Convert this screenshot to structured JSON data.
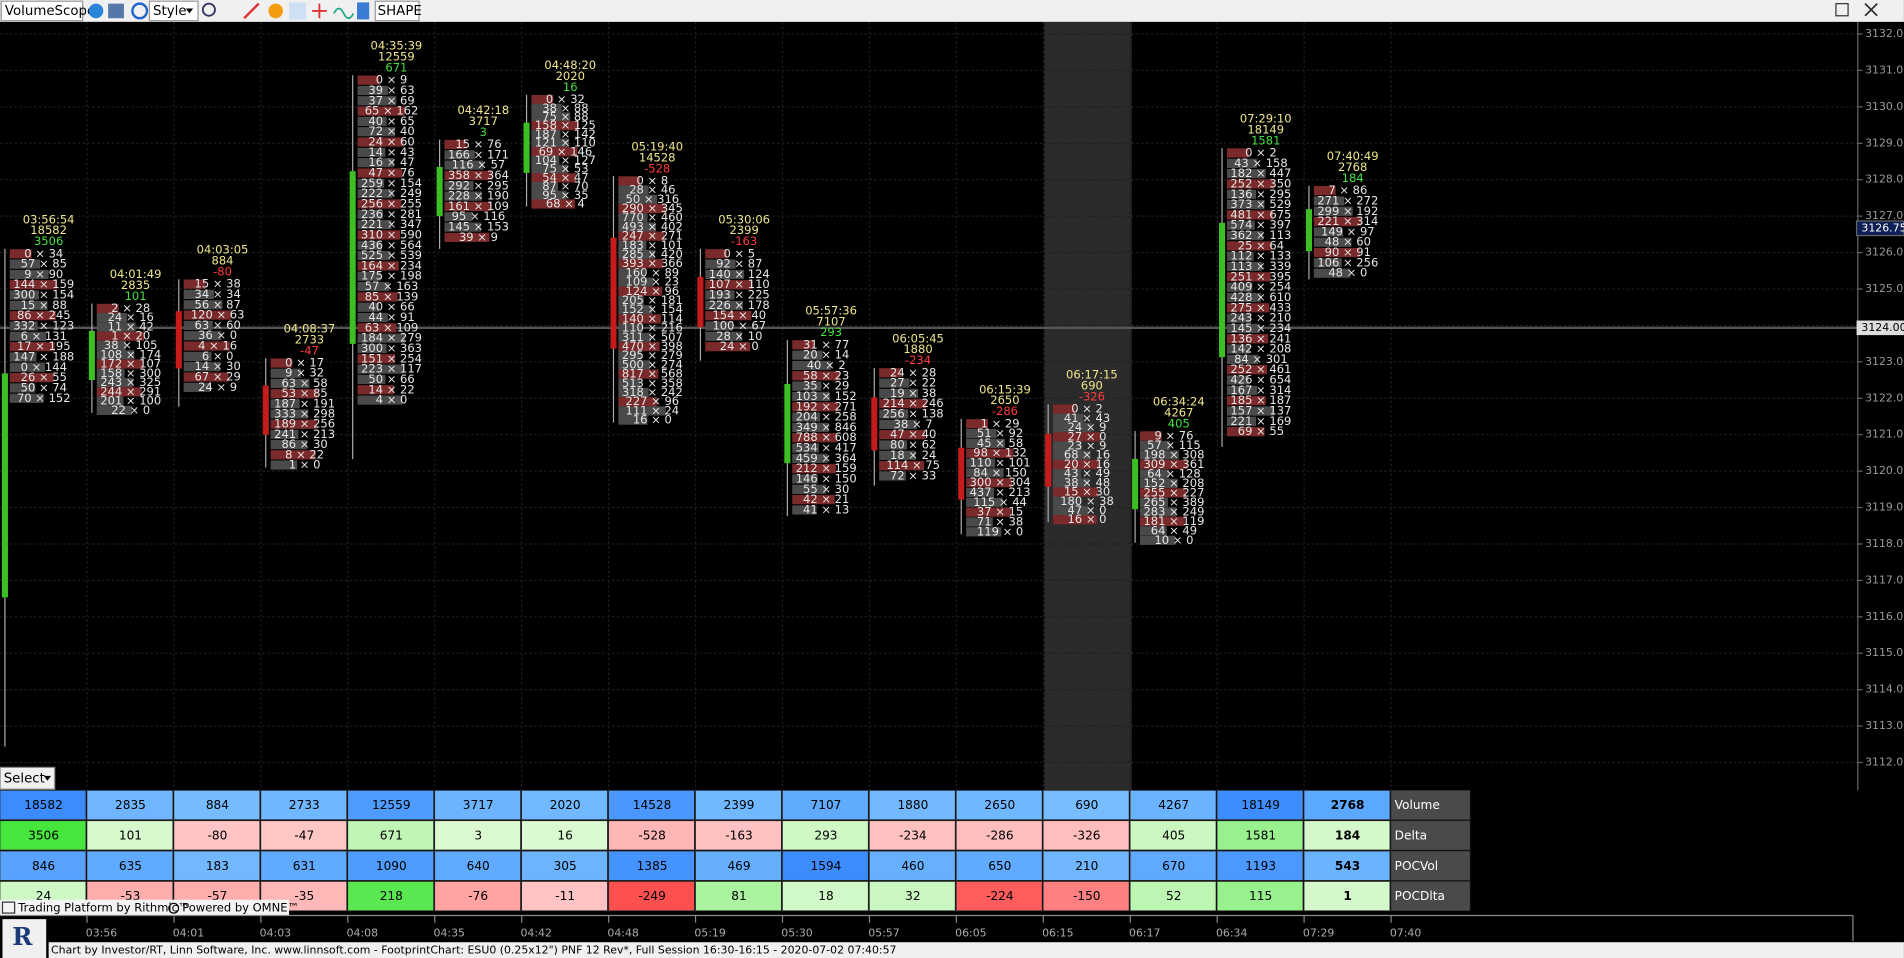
{
  "toolbar": {
    "app": "VolumeScope",
    "style": "Style",
    "shape": "SHAPE"
  },
  "price_axis": {
    "labels": [
      "3132.00",
      "3131.00",
      "3130.00",
      "3129.00",
      "3128.00",
      "3127.00",
      "3126.00",
      "3125.00",
      "3124.00",
      "3123.00",
      "3122.00",
      "3121.00",
      "3120.00",
      "3119.00",
      "3118.00",
      "3117.00",
      "3116.00",
      "3115.00",
      "3114.00",
      "3113.00",
      "3112.00"
    ],
    "last_price": "3126.75",
    "marker": "3124.00"
  },
  "bars": [
    {
      "time": "03:56:54",
      "volume": 18582,
      "delta": 3506,
      "poc_vol": 846,
      "poc_delta": 24,
      "cells": [
        "0 × 34",
        "57 × 85",
        "9 × 90",
        "144 × 159",
        "300 × 154",
        "15 × 88",
        "86 × 245",
        "332 × 123",
        "6 × 131",
        "17 × 195",
        "147 × 188",
        "0 × 144",
        "26 × 55",
        "50 × 74",
        "70 × 152"
      ]
    },
    {
      "time": "04:01:49",
      "volume": 2835,
      "delta": 101,
      "poc_vol": 635,
      "poc_delta": -53,
      "cells": [
        "2 × 28",
        "24 × 16",
        "11 × 42",
        "1 × 20",
        "38 × 105",
        "108 × 174",
        "172 × 107",
        "158 × 300",
        "243 × 325",
        "244 × 291",
        "201 × 100",
        "22 × 0"
      ]
    },
    {
      "time": "04:03:05",
      "volume": 884,
      "delta": -80,
      "poc_vol": 183,
      "poc_delta": -57,
      "cells": [
        "15 × 38",
        "34 × 34",
        "56 × 87",
        "120 × 63",
        "63 × 60",
        "36 × 0",
        "4 × 16",
        "6 × 0",
        "14 × 30",
        "67 × 29",
        "24 × 9"
      ]
    },
    {
      "time": "04:08:37",
      "volume": 2733,
      "delta": -47,
      "poc_vol": 631,
      "poc_delta": -35,
      "cells": [
        "0 × 17",
        "9 × 32",
        "63 × 58",
        "53 × 85",
        "187 × 191",
        "333 × 298",
        "189 × 256",
        "241 × 213",
        "86 × 30",
        "8 × 22",
        "1 × 0"
      ]
    },
    {
      "time": "04:35:39",
      "volume": 12559,
      "delta": 671,
      "poc_vol": 1090,
      "poc_delta": 218,
      "cells": [
        "0 × 9",
        "39 × 63",
        "37 × 69",
        "65 × 162",
        "40 × 65",
        "72 × 40",
        "24 × 60",
        "14 × 43",
        "16 × 47",
        "47 × 76",
        "259 × 154",
        "222 × 249",
        "256 × 255",
        "236 × 281",
        "221 × 347",
        "310 × 590",
        "436 × 564",
        "525 × 539",
        "164 × 234",
        "175 × 198",
        "57 × 163",
        "85 × 139",
        "40 × 66",
        "44 × 91",
        "63 × 109",
        "184 × 279",
        "300 × 363",
        "151 × 254",
        "223 × 117",
        "50 × 66",
        "14 × 22",
        "4 × 0"
      ]
    },
    {
      "time": "04:42:18",
      "volume": 3717,
      "delta": 3,
      "poc_vol": 640,
      "poc_delta": -76,
      "cells": [
        "15 × 76",
        "166 × 171",
        "116 × 57",
        "358 × 364",
        "292 × 295",
        "228 × 190",
        "161 × 109",
        "95 × 116",
        "145 × 153",
        "39 × 9"
      ]
    },
    {
      "time": "04:48:20",
      "volume": 2020,
      "delta": 16,
      "poc_vol": 305,
      "poc_delta": -11,
      "cells": [
        "0 × 32",
        "38 × 88",
        "75 × 88",
        "158 × 125",
        "187 × 142",
        "121 × 110",
        "69 × 146",
        "104 × 127",
        "75 × 53",
        "54 × 47",
        "87 × 70",
        "95 × 35",
        "68 × 4"
      ]
    },
    {
      "time": "05:19:40",
      "volume": 14528,
      "delta": -528,
      "poc_vol": 1385,
      "poc_delta": -249,
      "cells": [
        "0 × 8",
        "28 × 46",
        "50 × 316",
        "290 × 345",
        "770 × 460",
        "493 × 402",
        "247 × 271",
        "183 × 101",
        "285 × 420",
        "393 × 366",
        "160 × 89",
        "109 × 23",
        "124 × 96",
        "205 × 181",
        "152 × 154",
        "140 × 114",
        "110 × 216",
        "311 × 507",
        "470 × 398",
        "295 × 279",
        "500 × 274",
        "817 × 568",
        "513 × 358",
        "318 × 242",
        "227 × 96",
        "111 × 24",
        "16 × 0"
      ]
    },
    {
      "time": "05:30:06",
      "volume": 2399,
      "delta": -163,
      "poc_vol": 469,
      "poc_delta": 81,
      "cells": [
        "0 × 5",
        "92 × 87",
        "140 × 124",
        "107 × 110",
        "193 × 225",
        "226 × 178",
        "154 × 40",
        "100 × 67",
        "28 × 10",
        "24 × 0"
      ]
    },
    {
      "time": "05:57:36",
      "volume": 7107,
      "delta": 293,
      "poc_vol": 1594,
      "poc_delta": 18,
      "cells": [
        "31 × 77",
        "20 × 14",
        "40 × 2",
        "58 × 23",
        "35 × 29",
        "103 × 152",
        "192 × 271",
        "204 × 258",
        "349 × 846",
        "788 × 608",
        "534 × 417",
        "459 × 364",
        "212 × 159",
        "146 × 150",
        "55 × 30",
        "42 × 21",
        "41 × 13"
      ]
    },
    {
      "time": "06:05:45",
      "volume": 1880,
      "delta": -234,
      "poc_vol": 460,
      "poc_delta": 32,
      "cells": [
        "24 × 28",
        "27 × 22",
        "19 × 38",
        "214 × 246",
        "256 × 138",
        "38 × 7",
        "47 × 40",
        "80 × 62",
        "18 × 24",
        "114 × 75",
        "72 × 33"
      ]
    },
    {
      "time": "06:15:39",
      "volume": 2650,
      "delta": -286,
      "poc_vol": 650,
      "poc_delta": -224,
      "cells": [
        "1 × 29",
        "51 × 92",
        "45 × 58",
        "98 × 132",
        "110 × 101",
        "84 × 150",
        "300 × 304",
        "437 × 213",
        "115 × 44",
        "37 × 15",
        "71 × 38",
        "119 × 0"
      ]
    },
    {
      "time": "06:17:15",
      "volume": 690,
      "delta": -326,
      "poc_vol": 210,
      "poc_delta": -150,
      "cells": [
        "0 × 2",
        "41 × 43",
        "24 × 9",
        "27 × 0",
        "23 × 9",
        "68 × 16",
        "20 × 16",
        "43 × 49",
        "38 × 48",
        "15 × 30",
        "180 × 38",
        "47 × 0",
        "16 × 0"
      ]
    },
    {
      "time": "06:34:24",
      "volume": 4267,
      "delta": 405,
      "poc_vol": 670,
      "poc_delta": 52,
      "cells": [
        "9 × 76",
        "57 × 115",
        "198 × 308",
        "309 × 361",
        "64 × 128",
        "152 × 208",
        "255 × 227",
        "265 × 389",
        "283 × 249",
        "181 × 119",
        "64 × 49",
        "10 × 0"
      ]
    },
    {
      "time": "07:29:10",
      "volume": 18149,
      "delta": 1581,
      "poc_vol": 1193,
      "poc_delta": 115,
      "cells": [
        "0 × 2",
        "43 × 158",
        "182 × 447",
        "252 × 350",
        "136 × 295",
        "373 × 529",
        "481 × 675",
        "574 × 397",
        "362 × 113",
        "25 × 64",
        "112 × 133",
        "113 × 339",
        "251 × 395",
        "409 × 254",
        "428 × 610",
        "275 × 433",
        "243 × 210",
        "145 × 234",
        "136 × 241",
        "142 × 208",
        "84 × 301",
        "252 × 461",
        "426 × 654",
        "167 × 314",
        "185 × 187",
        "157 × 137",
        "221 × 169",
        "69 × 55"
      ]
    },
    {
      "time": "07:40:49",
      "volume": 2768,
      "delta": 184,
      "poc_vol": 543,
      "poc_delta": 1,
      "cells": [
        "7 × 86",
        "271 × 272",
        "299 × 192",
        "221 × 314",
        "149 × 97",
        "48 × 60",
        "90 × 91",
        "106 × 256",
        "48 × 0"
      ]
    }
  ],
  "table": {
    "row_labels": [
      "Volume",
      "Delta",
      "POCVol",
      "POCDlta"
    ]
  },
  "time_axis": [
    "03:56",
    "04:01",
    "04:03",
    "04:08",
    "04:35",
    "04:42",
    "04:48",
    "05:19",
    "05:30",
    "05:57",
    "06:05",
    "06:15",
    "06:17",
    "06:34",
    "07:29",
    "07:40"
  ],
  "select": "Select",
  "branding": [
    "Trading Platform by Rithmic™",
    "Powered by OMNE™"
  ],
  "footer": "Chart by Investor/RT, Linn Software, Inc. www.linnsoft.com - FootprintChart: ESU0 (0.25x12\") PNF 12 Rev*, Full Session 16:30-16:15 - 2020-07-02 07:40:57"
}
